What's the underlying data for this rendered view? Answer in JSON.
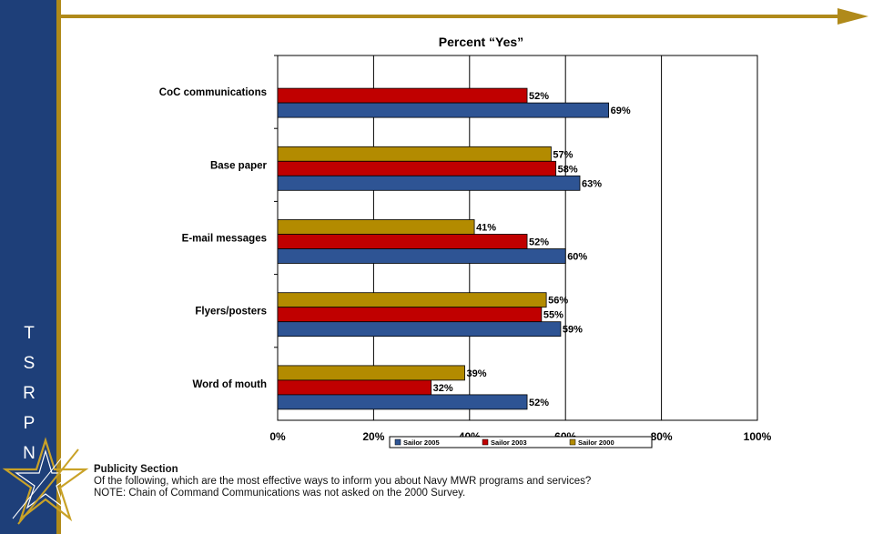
{
  "sidebar": {
    "brand_letters": [
      "N",
      "P",
      "R",
      "S",
      "T"
    ]
  },
  "colors": {
    "sailor_2005": "#2e5494",
    "sailor_2003": "#c00000",
    "sailor_2000": "#b38b00",
    "sidebar": "#1e3f79",
    "accent_gold": "#b08a1a"
  },
  "chart_data": {
    "type": "bar",
    "orientation": "horizontal",
    "title": "Percent “Yes”",
    "categories": [
      "CoC communications",
      "Base paper",
      "E-mail messages",
      "Flyers/posters",
      "Word of mouth"
    ],
    "series": [
      {
        "name": "Sailor 2000",
        "values": [
          null,
          57,
          41,
          56,
          39
        ]
      },
      {
        "name": "Sailor 2003",
        "values": [
          52,
          58,
          52,
          55,
          32
        ]
      },
      {
        "name": "Sailor 2005",
        "values": [
          69,
          63,
          60,
          59,
          52
        ]
      }
    ],
    "legend_order": [
      "Sailor 2005",
      "Sailor 2003",
      "Sailor 2000"
    ],
    "xlim": [
      0,
      100
    ],
    "x_ticks": [
      "0%",
      "20%",
      "40%",
      "60%",
      "80%",
      "100%"
    ],
    "grid": true,
    "legend_position": "bottom"
  },
  "note": {
    "heading": "Publicity Section",
    "line1": "Of the following, which are the most effective ways to inform you about Navy MWR programs and services?",
    "line2": "NOTE:  Chain of Command Communications was not asked on the 2000 Survey."
  }
}
